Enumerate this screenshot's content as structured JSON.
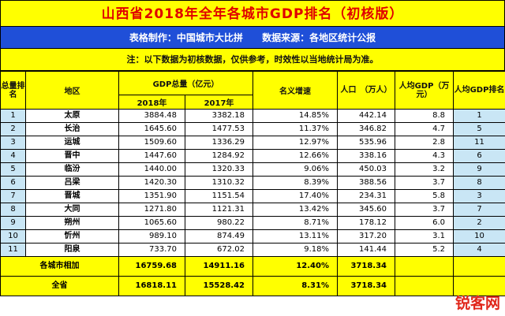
{
  "title": "山西省2018年全年各城市GDP排名（初核版）",
  "subtitle": {
    "maker": "表格制作：中国城市大比拼",
    "source": "数据来源：各地区统计公报"
  },
  "note": "注：以下数据为初核数据，仅供参考，时效性以当地统计局为准。",
  "headers": {
    "rank": "总量排名",
    "region": "地区",
    "gdp_total": "GDP总量（亿元）",
    "y2018": "2018年",
    "y2017": "2017年",
    "growth": "名义增速",
    "population": "人口　（万人）",
    "per_capita": "人均GDP（万元）",
    "per_capita_rank": "人均GDP排名"
  },
  "rows": [
    {
      "rank": "1",
      "region": "太原",
      "g2018": "3884.48",
      "g2017": "3382.18",
      "growth": "14.85%",
      "pop": "442.14",
      "pc": "8.8",
      "pcr": "1"
    },
    {
      "rank": "2",
      "region": "长治",
      "g2018": "1645.60",
      "g2017": "1477.53",
      "growth": "11.37%",
      "pop": "346.82",
      "pc": "4.7",
      "pcr": "5"
    },
    {
      "rank": "3",
      "region": "运城",
      "g2018": "1509.60",
      "g2017": "1336.29",
      "growth": "12.97%",
      "pop": "535.96",
      "pc": "2.8",
      "pcr": "11"
    },
    {
      "rank": "4",
      "region": "晋中",
      "g2018": "1447.60",
      "g2017": "1284.92",
      "growth": "12.66%",
      "pop": "338.16",
      "pc": "4.3",
      "pcr": "6"
    },
    {
      "rank": "5",
      "region": "临汾",
      "g2018": "1440.00",
      "g2017": "1320.33",
      "growth": "9.06%",
      "pop": "450.03",
      "pc": "3.2",
      "pcr": "9"
    },
    {
      "rank": "6",
      "region": "吕梁",
      "g2018": "1420.30",
      "g2017": "1310.32",
      "growth": "8.39%",
      "pop": "388.56",
      "pc": "3.7",
      "pcr": "8"
    },
    {
      "rank": "7",
      "region": "晋城",
      "g2018": "1351.90",
      "g2017": "1151.54",
      "growth": "17.40%",
      "pop": "234.31",
      "pc": "5.8",
      "pcr": "3"
    },
    {
      "rank": "8",
      "region": "大同",
      "g2018": "1271.80",
      "g2017": "1121.31",
      "growth": "13.42%",
      "pop": "345.60",
      "pc": "3.7",
      "pcr": "7"
    },
    {
      "rank": "9",
      "region": "朔州",
      "g2018": "1065.60",
      "g2017": "980.22",
      "growth": "8.71%",
      "pop": "178.12",
      "pc": "6.0",
      "pcr": "2"
    },
    {
      "rank": "10",
      "region": "忻州",
      "g2018": "989.10",
      "g2017": "874.49",
      "growth": "13.11%",
      "pop": "317.20",
      "pc": "3.1",
      "pcr": "10"
    },
    {
      "rank": "11",
      "region": "阳泉",
      "g2018": "733.70",
      "g2017": "672.02",
      "growth": "9.18%",
      "pop": "141.44",
      "pc": "5.2",
      "pcr": "4"
    }
  ],
  "totals": [
    {
      "label": "各城市相加",
      "g2018": "16759.68",
      "g2017": "14911.16",
      "growth": "12.40%",
      "pop": "3718.34"
    },
    {
      "label": "全省",
      "g2018": "16818.11",
      "g2017": "15528.42",
      "growth": "8.31%",
      "pop": "3718.34"
    }
  ],
  "watermark": "锐客网"
}
